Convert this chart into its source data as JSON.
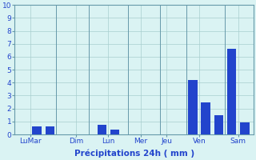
{
  "bar_values": [
    0.0,
    0.62,
    0.62,
    0.0,
    0.0,
    0.72,
    0.35,
    0.0,
    0.0,
    0.0,
    0.0,
    4.2,
    2.5,
    1.5,
    6.6,
    0.9
  ],
  "group_labels": [
    "LuMar",
    "Dim",
    "Lun",
    "Mer",
    "Jeu",
    "Ven",
    "Sam"
  ],
  "group_tick_positions": [
    1.0,
    3.5,
    5.5,
    8.0,
    10.5,
    12.5,
    15.0
  ],
  "bar_color": "#2244cc",
  "background_color": "#daf3f3",
  "grid_color": "#a8cece",
  "spine_color": "#6699aa",
  "xlabel": "Précipitations 24h ( mm )",
  "ylim": [
    0,
    10
  ],
  "yticks": [
    0,
    1,
    2,
    3,
    4,
    5,
    6,
    7,
    8,
    9,
    10
  ],
  "xlabel_fontsize": 7.5,
  "tick_fontsize": 6.5,
  "tick_color": "#2244cc",
  "bar_width": 0.7
}
